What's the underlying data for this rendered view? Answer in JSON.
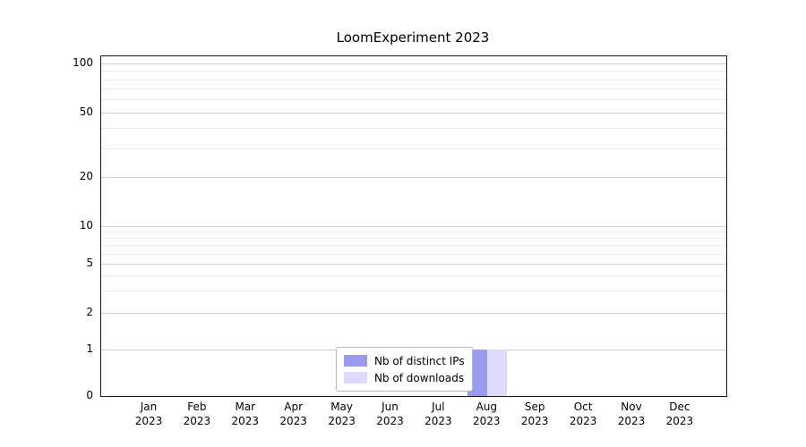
{
  "chart_data": {
    "type": "bar",
    "title": "LoomExperiment 2023",
    "categories": [
      "Jan 2023",
      "Feb 2023",
      "Mar 2023",
      "Apr 2023",
      "May 2023",
      "Jun 2023",
      "Jul 2023",
      "Aug 2023",
      "Sep 2023",
      "Oct 2023",
      "Nov 2023",
      "Dec 2023"
    ],
    "series": [
      {
        "name": "Nb of distinct IPs",
        "color": "#9999ee",
        "values": [
          0,
          0,
          0,
          0,
          0,
          0,
          0,
          1,
          0,
          0,
          0,
          0
        ]
      },
      {
        "name": "Nb of downloads",
        "color": "#dcdcfa",
        "values": [
          0,
          0,
          0,
          0,
          0,
          0,
          0,
          1,
          0,
          0,
          0,
          0
        ]
      }
    ],
    "xlabel": "",
    "ylabel": "",
    "yscale": "log",
    "yticks": [
      0,
      1,
      2,
      5,
      10,
      20,
      50,
      100
    ],
    "y_minor_gridlines": [
      3,
      4,
      6,
      7,
      8,
      9,
      30,
      40,
      60,
      70,
      80,
      90
    ],
    "ylim": [
      0,
      110
    ],
    "grid": true,
    "legend_position": "lower-center"
  }
}
